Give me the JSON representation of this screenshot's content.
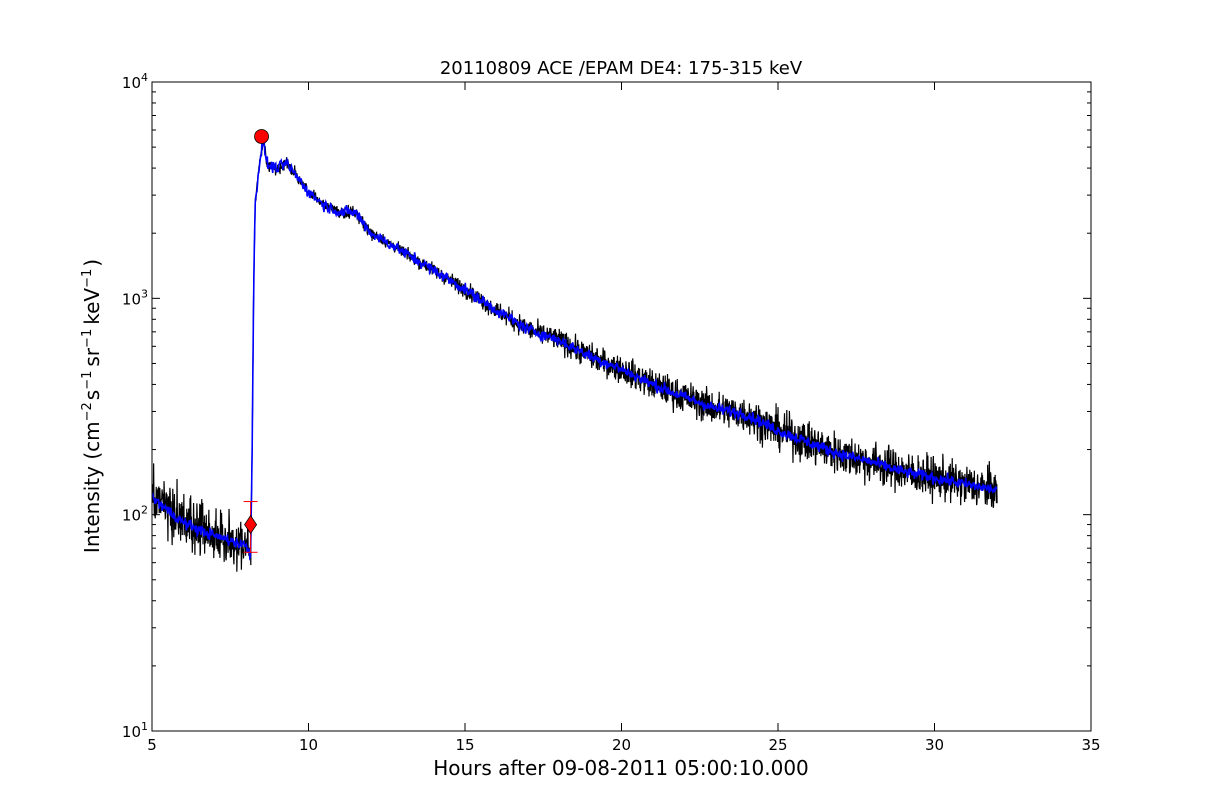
{
  "chart_data": {
    "type": "line",
    "title": "20110809 ACE /EPAM DE4: 175-315 keV",
    "xlabel": "Hours after 09-08-2011 05:00:10.000",
    "ylabel": {
      "prefix": "Intensity (cm",
      "exp1": "−2",
      "mid1": "s",
      "exp2": "−1",
      "mid2": "sr",
      "exp3": "−1",
      "mid3": "keV",
      "exp4": "−1",
      "suffix": ")"
    },
    "xlim": [
      5,
      35
    ],
    "ylim": [
      10,
      10000
    ],
    "yscale": "log",
    "x_ticks": [
      "5",
      "10",
      "15",
      "20",
      "25",
      "30",
      "35"
    ],
    "y_ticks": [
      {
        "base": "10",
        "exp": "1"
      },
      {
        "base": "10",
        "exp": "2"
      },
      {
        "base": "10",
        "exp": "3"
      },
      {
        "base": "10",
        "exp": "4"
      }
    ],
    "grid": false,
    "colors": {
      "raw": "#000000",
      "smoothed": "#0000ff",
      "onset_marker": "#ff0000",
      "peak_marker": "#ff0000",
      "error_bar": "#ff0000"
    },
    "series": [
      {
        "key": "raw",
        "style": "noisy",
        "x": [
          5.0,
          5.5,
          6.0,
          6.5,
          7.0,
          7.5,
          8.0,
          8.15,
          8.2,
          8.25,
          8.3,
          8.35,
          8.45,
          8.55,
          8.7,
          9.0,
          9.3,
          9.6,
          10.0,
          10.5,
          11.0,
          11.5,
          12.0,
          13.0,
          14.0,
          15.0,
          16.0,
          17.0,
          18.0,
          19.0,
          20.0,
          21.0,
          22.0,
          23.0,
          24.0,
          25.0,
          26.0,
          27.0,
          28.0,
          29.0,
          30.0,
          31.0,
          32.0
        ],
        "y": [
          120,
          105,
          92,
          85,
          80,
          76,
          72,
          66,
          200,
          1200,
          2800,
          3300,
          4400,
          5300,
          4100,
          4000,
          4200,
          3700,
          3100,
          2700,
          2500,
          2500,
          2000,
          1650,
          1350,
          1100,
          880,
          720,
          640,
          540,
          470,
          400,
          350,
          310,
          290,
          245,
          215,
          190,
          175,
          158,
          148,
          138,
          130
        ],
        "spread": [
          0.22,
          0.24,
          0.26,
          0.26,
          0.26,
          0.26,
          0.24,
          0.2,
          0.05,
          0.03,
          0.04,
          0.04,
          0.05,
          0.06,
          0.05,
          0.05,
          0.05,
          0.05,
          0.05,
          0.05,
          0.05,
          0.05,
          0.05,
          0.05,
          0.06,
          0.07,
          0.08,
          0.09,
          0.1,
          0.11,
          0.12,
          0.13,
          0.14,
          0.15,
          0.16,
          0.17,
          0.18,
          0.18,
          0.18,
          0.18,
          0.18,
          0.18,
          0.18
        ]
      },
      {
        "key": "smoothed",
        "style": "smooth",
        "x": [
          5.0,
          5.5,
          6.0,
          6.5,
          7.0,
          7.5,
          8.0,
          8.15,
          8.2,
          8.25,
          8.3,
          8.35,
          8.45,
          8.55,
          8.7,
          9.0,
          9.3,
          9.6,
          10.0,
          10.5,
          11.0,
          11.5,
          12.0,
          13.0,
          14.0,
          15.0,
          16.0,
          17.0,
          18.0,
          19.0,
          20.0,
          21.0,
          22.0,
          23.0,
          24.0,
          25.0,
          26.0,
          27.0,
          28.0,
          29.0,
          30.0,
          31.0,
          32.0
        ],
        "y": [
          120,
          105,
          92,
          85,
          80,
          76,
          72,
          66,
          200,
          1200,
          2800,
          3300,
          4400,
          5300,
          4100,
          4000,
          4200,
          3700,
          3100,
          2700,
          2500,
          2500,
          2000,
          1650,
          1350,
          1100,
          880,
          720,
          640,
          540,
          470,
          400,
          350,
          310,
          290,
          245,
          215,
          190,
          175,
          158,
          148,
          138,
          130
        ]
      }
    ],
    "markers": {
      "onset": {
        "x": 8.15,
        "y": 90,
        "y_upper": 115,
        "y_lower": 67,
        "shape": "diamond"
      },
      "peak": {
        "x": 8.5,
        "y": 5600,
        "shape": "circle"
      }
    }
  }
}
